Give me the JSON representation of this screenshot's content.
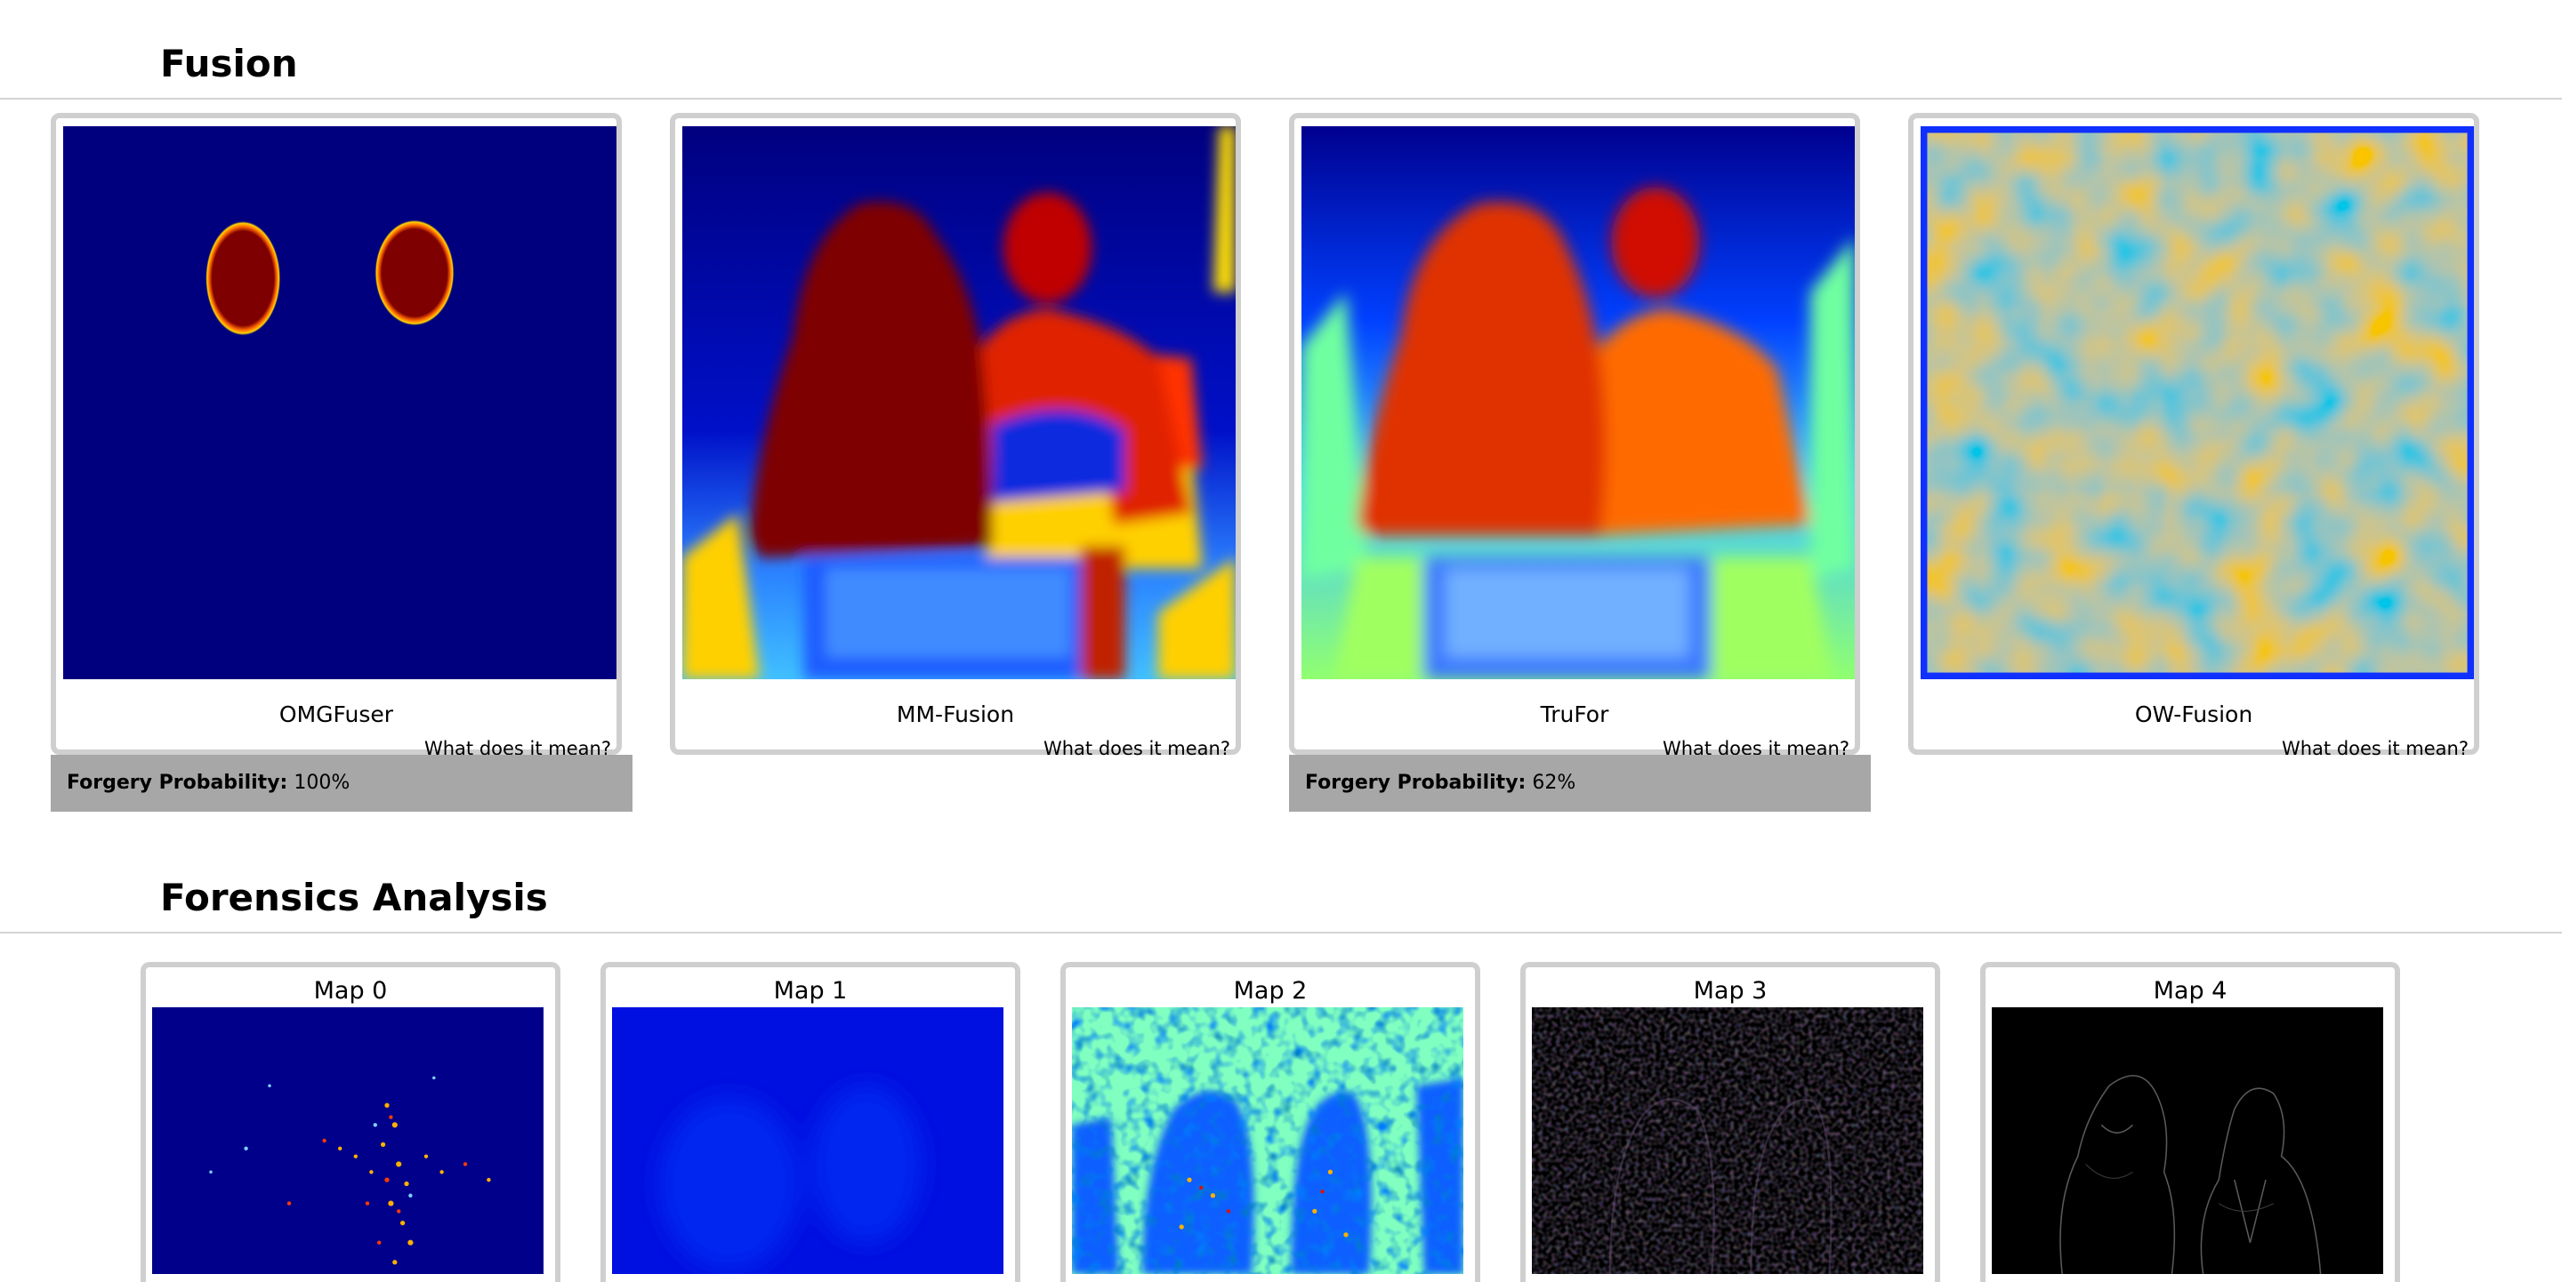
{
  "sections": {
    "fusion": "Fusion",
    "forensics": "Forensics Analysis"
  },
  "fusion_cards": [
    {
      "name": "OMGFuser",
      "help": "What does it mean?",
      "prob_label": "Forgery Probability:",
      "prob_value": "100%"
    },
    {
      "name": "MM-Fusion",
      "help": "What does it mean?"
    },
    {
      "name": "TruFor",
      "help": "What does it mean?",
      "prob_label": "Forgery Probability:",
      "prob_value": "62%"
    },
    {
      "name": "OW-Fusion",
      "help": "What does it mean?"
    }
  ],
  "maps": [
    {
      "title": "Map 0"
    },
    {
      "title": "Map 1"
    },
    {
      "title": "Map 2"
    },
    {
      "title": "Map 3"
    },
    {
      "title": "Map 4"
    }
  ],
  "colors": {
    "heatmap_low": "#00007f",
    "heatmap_mid": "#7fff7f",
    "heatmap_high": "#7f0000",
    "probability_bar": "#a7a7a7",
    "card_border": "#cfcfcf"
  }
}
